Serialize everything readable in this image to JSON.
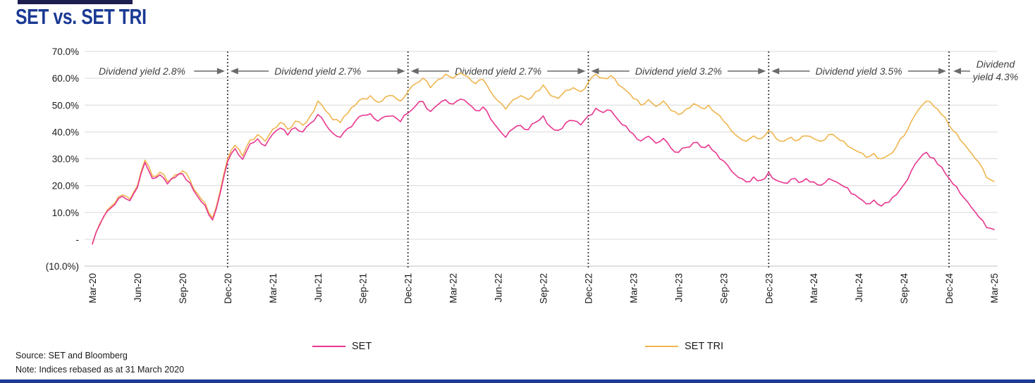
{
  "page": {
    "title": "SET vs. SET TRI"
  },
  "colors": {
    "title": "#1B3A94",
    "set": "#E8368F",
    "set_tri": "#EFB54E",
    "grid": "#D9D9D9",
    "axis": "#BFBFBF",
    "divider": "#3D3D3D",
    "annotation_text": "#404040",
    "arrow": "#6A6A6A",
    "bottom_bar": "#1B3A94"
  },
  "footer": {
    "source": "Source: SET and Bloomberg",
    "note": "Note: Indices rebased as at 31 March 2020"
  },
  "chart_data": {
    "type": "line",
    "title": "SET vs. SET TRI",
    "unit": "%",
    "grid": true,
    "legend_position": "bottom",
    "x_axis": {
      "labels": [
        "Mar-20",
        "Jun-20",
        "Sep-20",
        "Dec-20",
        "Mar-21",
        "Jun-21",
        "Sep-21",
        "Dec-21",
        "Mar-22",
        "Jun-22",
        "Sep-22",
        "Dec-22",
        "Mar-23",
        "Jun-23",
        "Sep-23",
        "Dec-23",
        "Mar-24",
        "Jun-24",
        "Sep-24",
        "Dec-24",
        "Mar-25"
      ],
      "tick_interval_months": 3
    },
    "y_axis": {
      "range": [
        -10,
        70
      ],
      "tick_values": [
        70,
        60,
        50,
        40,
        30,
        20,
        10,
        0,
        -10
      ],
      "tick_labels": [
        "70.0%",
        "60.0%",
        "50.0%",
        "40.0%",
        "30.0%",
        "20.0%",
        "10.0%",
        "-",
        "(10.0%)"
      ]
    },
    "x_range_months": [
      0,
      60
    ],
    "x_step_months": 0.5,
    "series": [
      {
        "name": "SET TRI",
        "color": "#EFB54E",
        "values": [
          -1.5,
          6,
          11,
          13.5,
          16.5,
          15,
          20,
          29.5,
          23.5,
          25,
          21.5,
          24,
          25.5,
          22,
          17,
          13.5,
          8,
          18,
          30,
          35,
          31,
          37,
          39,
          36.5,
          41,
          43.5,
          41,
          44,
          42.5,
          46,
          51.5,
          48,
          44.5,
          43.5,
          47,
          50,
          52.5,
          53.5,
          51,
          53,
          53.5,
          51.5,
          55,
          58,
          60,
          56.5,
          59.5,
          61.5,
          60,
          62,
          60.5,
          58,
          59.5,
          55,
          51.5,
          48.5,
          52,
          53.5,
          52,
          55,
          57.5,
          53.5,
          52.5,
          55.5,
          56.5,
          55,
          58.5,
          61.5,
          60,
          61,
          57.5,
          55.5,
          52.5,
          50,
          52,
          49.5,
          51.5,
          48,
          46.5,
          48.5,
          50.5,
          49,
          50,
          47,
          44,
          40.5,
          38,
          36.5,
          38.5,
          37.5,
          40.5,
          37.5,
          36.5,
          38,
          37,
          38.5,
          37.5,
          36.5,
          39,
          38,
          36.5,
          34,
          32.5,
          30.5,
          32,
          30,
          31.5,
          34.5,
          38.5,
          44,
          48.5,
          51.5,
          49.5,
          46.5,
          42.5,
          39.5,
          35.5,
          32,
          28.5,
          23,
          21.5
        ]
      },
      {
        "name": "SET",
        "color": "#E8368F",
        "values": [
          -1.8,
          5.5,
          10.5,
          13,
          16,
          14.4,
          19.3,
          28.6,
          22.6,
          24,
          20.6,
          23,
          24.4,
          21,
          16,
          12.6,
          7.2,
          17,
          29,
          33.8,
          29.8,
          35.6,
          37.4,
          34.8,
          39.2,
          41.4,
          38.8,
          41.6,
          40,
          43.2,
          46.5,
          43,
          39.5,
          38,
          41.3,
          44,
          46.2,
          46.8,
          44,
          45.8,
          46,
          43.8,
          47,
          49.6,
          51.3,
          47.6,
          50.2,
          52,
          50.4,
          52.2,
          50.6,
          48,
          49.3,
          44.8,
          41.2,
          38,
          41.2,
          42.4,
          40.8,
          43.6,
          46,
          41.8,
          40.6,
          43.4,
          44.2,
          42.6,
          46,
          48.8,
          47.2,
          48,
          44.4,
          42.2,
          39.2,
          36.6,
          38.4,
          35.8,
          37.6,
          34,
          32.4,
          34.2,
          36,
          34.4,
          35.2,
          32.2,
          29.2,
          25.6,
          23,
          21.4,
          23.2,
          22,
          25,
          22,
          21,
          22.4,
          21.2,
          22.6,
          21.4,
          20.2,
          22.6,
          21.4,
          19.6,
          17,
          15.4,
          13.2,
          14.6,
          12.4,
          13.8,
          16.6,
          20.4,
          25.6,
          29.8,
          32.4,
          30.2,
          27,
          22.8,
          19.6,
          15.4,
          11.8,
          8.2,
          4.4,
          3.6
        ]
      }
    ],
    "dividers_months": [
      9,
      21,
      33,
      45,
      57
    ],
    "annotations": [
      {
        "label": "Dividend yield 2.8%",
        "start_month": 0,
        "end_month": 9,
        "arrows": "right"
      },
      {
        "label": "Dividend yield 2.7%",
        "start_month": 9,
        "end_month": 21,
        "arrows": "both"
      },
      {
        "label": "Dividend yield 2.7%",
        "start_month": 21,
        "end_month": 33,
        "arrows": "both"
      },
      {
        "label": "Dividend yield 3.2%",
        "start_month": 33,
        "end_month": 45,
        "arrows": "both"
      },
      {
        "label": "Dividend yield 3.5%",
        "start_month": 45,
        "end_month": 57,
        "arrows": "both"
      },
      {
        "label": "Dividend yield 4.3%",
        "label_lines": [
          "Dividend",
          "yield 4.3%"
        ],
        "start_month": 57,
        "end_month": 60,
        "arrows": "left"
      }
    ],
    "legend": [
      {
        "label": "SET",
        "color": "#E8368F"
      },
      {
        "label": "SET TRI",
        "color": "#EFB54E"
      }
    ]
  }
}
